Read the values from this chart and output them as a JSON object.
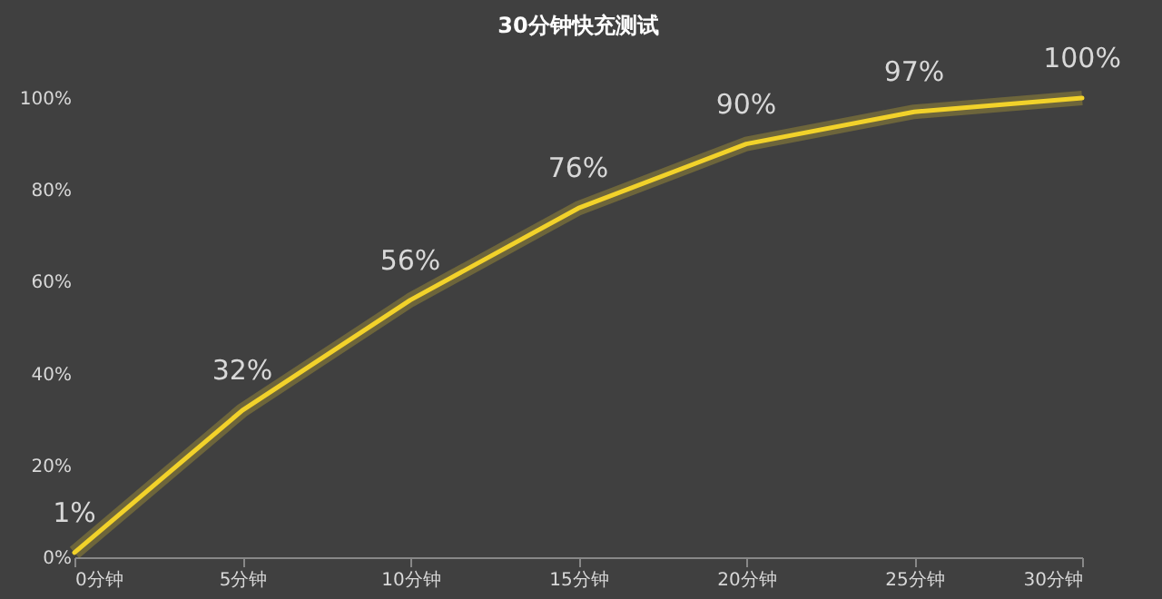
{
  "chart_data": {
    "type": "line",
    "title": "30分钟快充测试",
    "categories": [
      "0分钟",
      "5分钟",
      "10分钟",
      "15分钟",
      "20分钟",
      "25分钟",
      "30分钟"
    ],
    "series": [
      {
        "color": "#f2d22a",
        "values": [
          1,
          32,
          56,
          76,
          90,
          97,
          100
        ],
        "value_labels": [
          "1%",
          "32%",
          "56%",
          "76%",
          "90%",
          "97%",
          "100%"
        ]
      }
    ],
    "ylim": [
      0,
      100
    ],
    "yticks": [
      {
        "value": 0,
        "label": "0%"
      },
      {
        "value": 20,
        "label": "20%"
      },
      {
        "value": 40,
        "label": "40%"
      },
      {
        "value": 60,
        "label": "60%"
      },
      {
        "value": 80,
        "label": "80%"
      },
      {
        "value": 100,
        "label": "100%"
      }
    ],
    "grid": false,
    "marker": "none",
    "line_style": "solid"
  }
}
